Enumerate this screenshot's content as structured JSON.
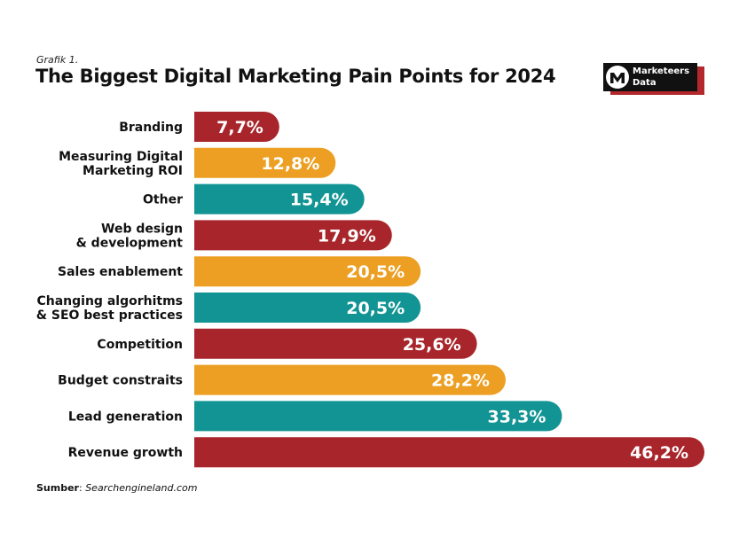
{
  "header": {
    "subtitle": "Grafik 1.",
    "title": "The Biggest Digital Marketing Pain Points for 2024"
  },
  "logo": {
    "line1": "Marketeers",
    "line2": "Data",
    "icon": "m-logo-icon"
  },
  "source": {
    "label": "Sumber",
    "separator": ": ",
    "value": "Searchengineland.com"
  },
  "colors": {
    "red": "#a8262b",
    "orange": "#ec9f22",
    "teal": "#119493",
    "text": "#111111"
  },
  "chart_data": {
    "type": "bar",
    "orientation": "horizontal",
    "title": "The Biggest Digital Marketing Pain Points for 2024",
    "xlabel": "",
    "ylabel": "",
    "xlim": [
      0,
      46.2
    ],
    "grid": false,
    "categories": [
      [
        "Branding"
      ],
      [
        "Measuring Digital",
        "Marketing ROI"
      ],
      [
        "Other"
      ],
      [
        "Web design",
        "& development"
      ],
      [
        "Sales enablement"
      ],
      [
        "Changing algorhitms",
        "& SEO best practices"
      ],
      [
        "Competition"
      ],
      [
        "Budget constraits"
      ],
      [
        "Lead generation"
      ],
      [
        "Revenue growth"
      ]
    ],
    "values": [
      7.7,
      12.8,
      15.4,
      17.9,
      20.5,
      20.5,
      25.6,
      28.2,
      33.3,
      46.2
    ],
    "value_labels": [
      "7,7%",
      "12,8%",
      "15,4%",
      "17,9%",
      "20,5%",
      "20,5%",
      "25,6%",
      "28,2%",
      "33,3%",
      "46,2%"
    ],
    "bar_colors": [
      "#a8262b",
      "#ec9f22",
      "#119493",
      "#a8262b",
      "#ec9f22",
      "#119493",
      "#a8262b",
      "#ec9f22",
      "#119493",
      "#a8262b"
    ]
  }
}
